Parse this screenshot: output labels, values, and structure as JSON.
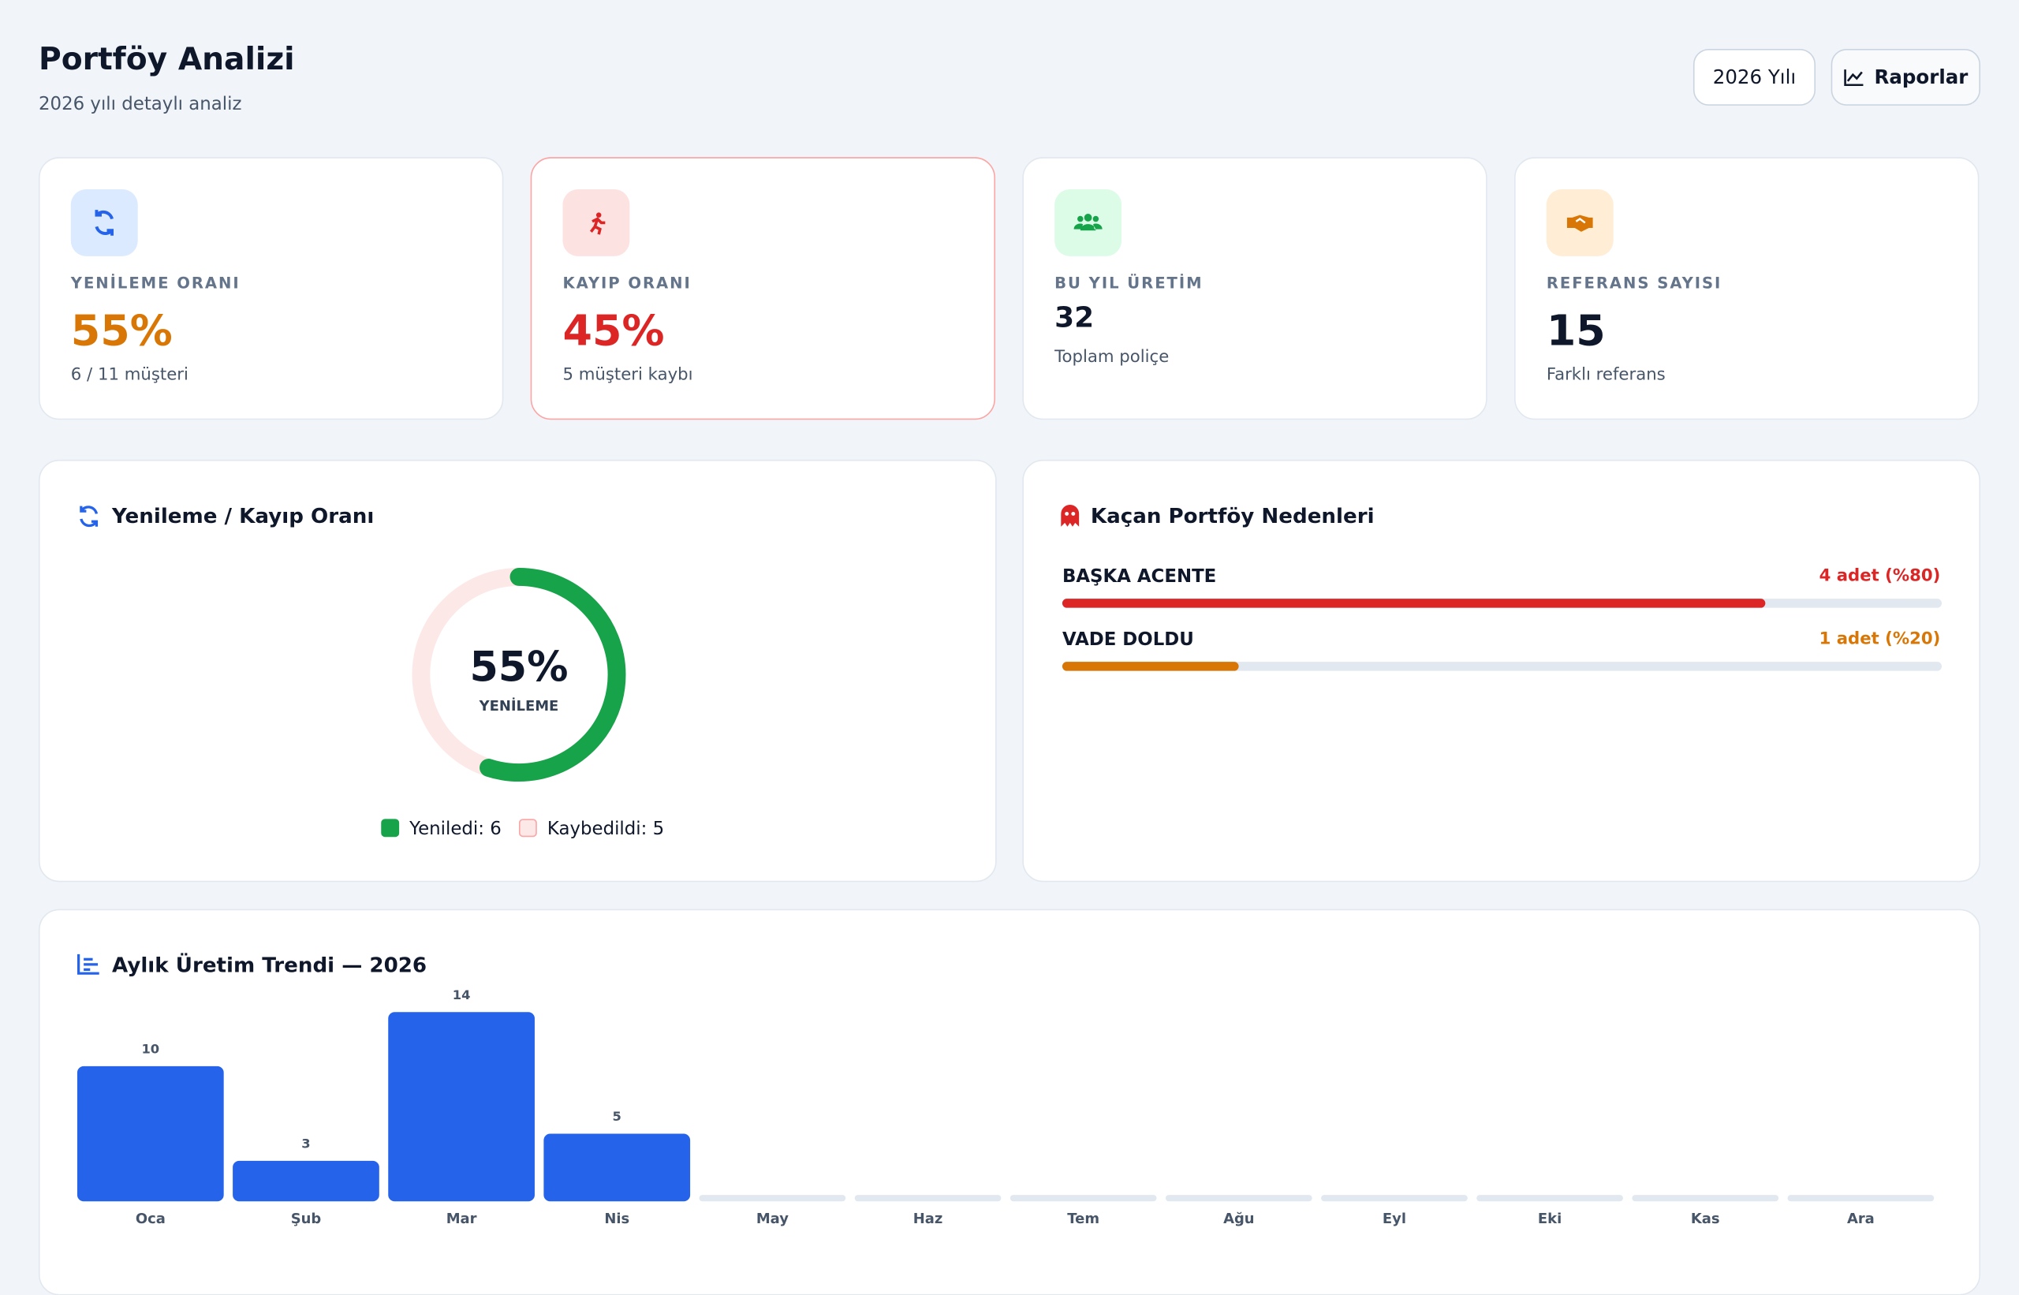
{
  "header": {
    "title": "Portföy Analizi",
    "subtitle": "2026 yılı detaylı analiz",
    "buttons": [
      "2026 Yılı",
      "Raporlar"
    ]
  },
  "cards": [
    {
      "label": "YENİLEME ORANI",
      "value": "55%",
      "sub": "6 / 11 müşteri",
      "color": "#d97706"
    },
    {
      "label": "KAYIP ORANI",
      "value": "45%",
      "sub": "5 müşteri kaybı",
      "color": "#dc2626"
    },
    {
      "label": "BU YIL ÜRETİM",
      "value": "32",
      "sub": "Toplam poliçe",
      "color": "#0f172a"
    },
    {
      "label": "REFERANS SAYISI",
      "value": "15",
      "sub": "Farklı referans",
      "color": "#0f172a"
    }
  ],
  "renewal": {
    "title": "Yenileme / Kayıp Oranı",
    "percent": {
      "value": 55,
      "label": "55%"
    },
    "center_label": "YENİLEME",
    "legend": [
      "Yeniledi: 6",
      "Kaybedildi: 5"
    ]
  },
  "reasons": {
    "title": "Kaçan Portföy Nedenleri",
    "xlim": [
      0,
      100
    ],
    "items": [
      {
        "name": "BAŞKA ACENTE",
        "value": 80,
        "label": "4 adet (%80)",
        "color": "#dc2626"
      },
      {
        "name": "VADE DOLDU",
        "value": 20,
        "label": "1 adet (%20)",
        "color": "#d97706"
      }
    ]
  },
  "chart_data": {
    "type": "bar",
    "title": "Aylık Üretim Trendi — 2026",
    "color": "#2563eb",
    "categories": [
      "Oca",
      "Şub",
      "Mar",
      "Nis",
      "May",
      "Haz",
      "Tem",
      "Ağu",
      "Eyl",
      "Eki",
      "Kas",
      "Ara"
    ],
    "values": [
      10,
      3,
      14,
      5,
      0,
      0,
      0,
      0,
      0,
      0,
      0,
      0
    ]
  }
}
